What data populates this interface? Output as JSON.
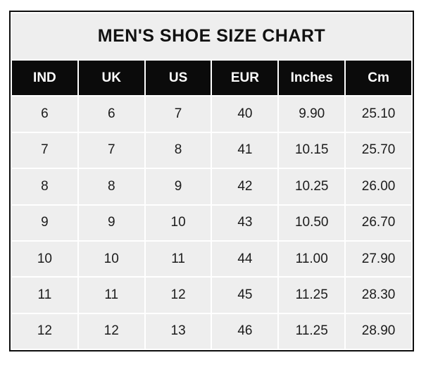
{
  "chart_data": {
    "type": "table",
    "title": "MEN'S SHOE SIZE CHART",
    "columns": [
      "IND",
      "UK",
      "US",
      "EUR",
      "Inches",
      "Cm"
    ],
    "rows": [
      [
        "6",
        "6",
        "7",
        "40",
        "9.90",
        "25.10"
      ],
      [
        "7",
        "7",
        "8",
        "41",
        "10.15",
        "25.70"
      ],
      [
        "8",
        "8",
        "9",
        "42",
        "10.25",
        "26.00"
      ],
      [
        "9",
        "9",
        "10",
        "43",
        "10.50",
        "26.70"
      ],
      [
        "10",
        "10",
        "11",
        "44",
        "11.00",
        "27.90"
      ],
      [
        "11",
        "11",
        "12",
        "45",
        "11.25",
        "28.30"
      ],
      [
        "12",
        "12",
        "13",
        "46",
        "11.25",
        "28.90"
      ]
    ],
    "layout": {
      "grid": "on",
      "legend": "none"
    }
  },
  "colors": {
    "border": "#0d0d0d",
    "header_bg": "#0b0b0b",
    "header_text": "#fdfdfd",
    "cell_bg": "#eeeeee",
    "cell_text": "#1c1c1c",
    "grid_lines": "#ffffff",
    "title_bg": "#eeeeee",
    "title_text": "#111111"
  }
}
